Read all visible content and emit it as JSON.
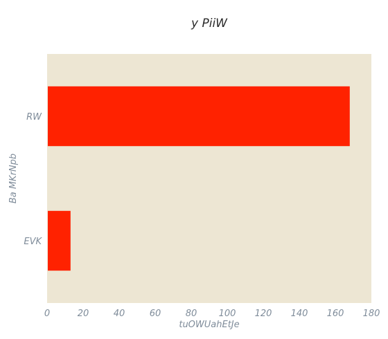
{
  "chart_data": {
    "type": "bar",
    "orientation": "horizontal",
    "title": "y PiiW",
    "xlabel": "tuOWUahEtJe",
    "ylabel": "Ba MKrNpb",
    "categories": [
      "RW",
      "EVK"
    ],
    "values": [
      168,
      13
    ],
    "xlim": [
      0,
      180
    ],
    "xticks": [
      0,
      20,
      40,
      60,
      80,
      100,
      120,
      140,
      160,
      180
    ],
    "grid": false,
    "legend": "none"
  },
  "colors": {
    "bar": "#ff2200",
    "plot_background": "#ede6d3"
  }
}
